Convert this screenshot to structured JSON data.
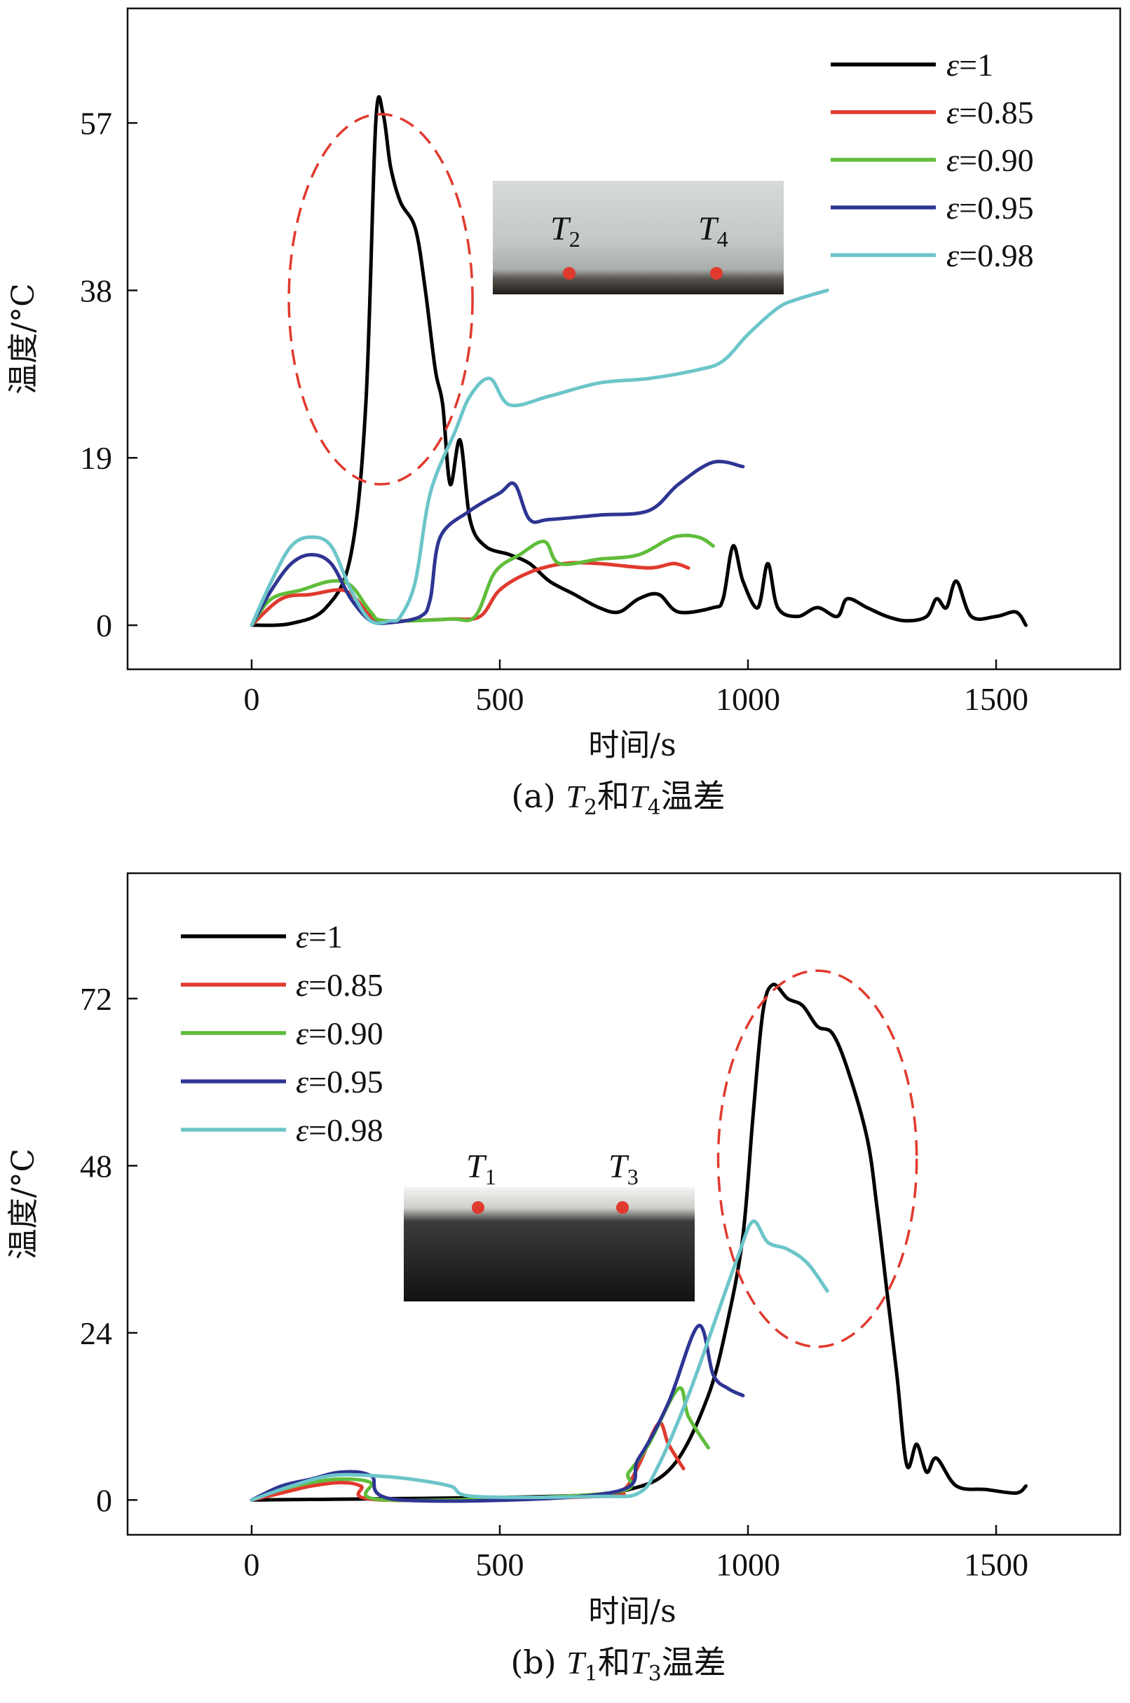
{
  "colors": {
    "eps_1": "#000000",
    "eps_0_85": "#e03a2e",
    "eps_0_90": "#5fbd3a",
    "eps_0_95": "#2e3592",
    "eps_0_98": "#6cc5c9",
    "highlight": "#e03a2e"
  },
  "chart_data": [
    {
      "id": "a",
      "type": "line",
      "caption_prefix": "(a)",
      "caption_text": "和",
      "caption_suffix": "温差",
      "caption_var1": "T",
      "caption_sub1": "2",
      "caption_var2": "T",
      "caption_sub2": "4",
      "xlabel": "时间/s",
      "ylabel": "温度/°C",
      "xlim": [
        -250,
        1750
      ],
      "ylim": [
        -5,
        70
      ],
      "xticks": [
        0,
        500,
        1000,
        1500
      ],
      "yticks": [
        0,
        19,
        38,
        57
      ],
      "legend_position": "top-right",
      "highlight_ellipse": {
        "cx": 260,
        "cy": 37,
        "rx": 185,
        "ry": 21
      },
      "inset": {
        "type": "photo-light",
        "label1": "T",
        "sub1": "2",
        "label2": "T",
        "sub2": "4"
      },
      "series": [
        {
          "name": "ε=1",
          "color_key": "eps_1",
          "points": [
            [
              0,
              0
            ],
            [
              80,
              0.2
            ],
            [
              150,
              2
            ],
            [
              200,
              8
            ],
            [
              230,
              25
            ],
            [
              250,
              57
            ],
            [
              265,
              58
            ],
            [
              280,
              52
            ],
            [
              300,
              48
            ],
            [
              330,
              45
            ],
            [
              350,
              38
            ],
            [
              370,
              29
            ],
            [
              385,
              25
            ],
            [
              400,
              16
            ],
            [
              420,
              21
            ],
            [
              440,
              12
            ],
            [
              470,
              9
            ],
            [
              520,
              8
            ],
            [
              560,
              7
            ],
            [
              600,
              5
            ],
            [
              650,
              3.5
            ],
            [
              700,
              2
            ],
            [
              740,
              1.5
            ],
            [
              780,
              3
            ],
            [
              820,
              3.5
            ],
            [
              860,
              1.5
            ],
            [
              930,
              2
            ],
            [
              950,
              3
            ],
            [
              970,
              9
            ],
            [
              990,
              5
            ],
            [
              1020,
              2
            ],
            [
              1040,
              7
            ],
            [
              1060,
              2
            ],
            [
              1100,
              1
            ],
            [
              1140,
              2
            ],
            [
              1180,
              1
            ],
            [
              1200,
              3
            ],
            [
              1240,
              2
            ],
            [
              1280,
              1
            ],
            [
              1320,
              0.5
            ],
            [
              1360,
              1
            ],
            [
              1380,
              3
            ],
            [
              1400,
              2
            ],
            [
              1420,
              5
            ],
            [
              1450,
              1
            ],
            [
              1500,
              1
            ],
            [
              1540,
              1.5
            ],
            [
              1560,
              0
            ]
          ]
        },
        {
          "name": "ε=0.85",
          "color_key": "eps_0_85",
          "points": [
            [
              0,
              0
            ],
            [
              60,
              3
            ],
            [
              120,
              3.5
            ],
            [
              180,
              4
            ],
            [
              210,
              3
            ],
            [
              240,
              1
            ],
            [
              270,
              0.5
            ],
            [
              400,
              0.7
            ],
            [
              460,
              1
            ],
            [
              500,
              4
            ],
            [
              560,
              6
            ],
            [
              630,
              7
            ],
            [
              700,
              7
            ],
            [
              800,
              6.5
            ],
            [
              850,
              7
            ],
            [
              880,
              6.5
            ]
          ]
        },
        {
          "name": "ε=0.90",
          "color_key": "eps_0_90",
          "points": [
            [
              0,
              0
            ],
            [
              40,
              3
            ],
            [
              100,
              4
            ],
            [
              160,
              5
            ],
            [
              200,
              4.5
            ],
            [
              240,
              1.5
            ],
            [
              270,
              0.5
            ],
            [
              400,
              0.7
            ],
            [
              450,
              1
            ],
            [
              490,
              6
            ],
            [
              540,
              8
            ],
            [
              590,
              9.5
            ],
            [
              620,
              7
            ],
            [
              700,
              7.5
            ],
            [
              780,
              8
            ],
            [
              850,
              10
            ],
            [
              900,
              10
            ],
            [
              930,
              9
            ]
          ]
        },
        {
          "name": "ε=0.95",
          "color_key": "eps_0_95",
          "points": [
            [
              0,
              0
            ],
            [
              40,
              4
            ],
            [
              80,
              7
            ],
            [
              120,
              8
            ],
            [
              160,
              7
            ],
            [
              200,
              3
            ],
            [
              240,
              0.5
            ],
            [
              280,
              0.3
            ],
            [
              340,
              1
            ],
            [
              360,
              3
            ],
            [
              380,
              10
            ],
            [
              440,
              13
            ],
            [
              500,
              15
            ],
            [
              530,
              16
            ],
            [
              560,
              12
            ],
            [
              600,
              12
            ],
            [
              700,
              12.5
            ],
            [
              800,
              13
            ],
            [
              860,
              16
            ],
            [
              930,
              18.5
            ],
            [
              990,
              18
            ]
          ]
        },
        {
          "name": "ε=0.98",
          "color_key": "eps_0_98",
          "points": [
            [
              0,
              0
            ],
            [
              40,
              5
            ],
            [
              80,
              9
            ],
            [
              120,
              10
            ],
            [
              160,
              9
            ],
            [
              200,
              4
            ],
            [
              240,
              0.5
            ],
            [
              280,
              0.5
            ],
            [
              300,
              1
            ],
            [
              330,
              5
            ],
            [
              360,
              15
            ],
            [
              410,
              22
            ],
            [
              440,
              26
            ],
            [
              480,
              28
            ],
            [
              520,
              25
            ],
            [
              600,
              26
            ],
            [
              700,
              27.5
            ],
            [
              800,
              28
            ],
            [
              900,
              29
            ],
            [
              950,
              30
            ],
            [
              1000,
              33
            ],
            [
              1060,
              36
            ],
            [
              1100,
              37
            ],
            [
              1160,
              38
            ]
          ]
        }
      ]
    },
    {
      "id": "b",
      "type": "line",
      "caption_prefix": "(b)",
      "caption_text": "和",
      "caption_suffix": "温差",
      "caption_var1": "T",
      "caption_sub1": "1",
      "caption_var2": "T",
      "caption_sub2": "3",
      "xlabel": "时间/s",
      "ylabel": "温度/°C",
      "xlim": [
        -250,
        1750
      ],
      "ylim": [
        -5,
        90
      ],
      "xticks": [
        0,
        500,
        1000,
        1500
      ],
      "yticks": [
        0,
        24,
        48,
        72
      ],
      "legend_position": "top-left",
      "highlight_ellipse": {
        "cx": 1140,
        "cy": 49,
        "rx": 200,
        "ry": 27
      },
      "inset": {
        "type": "photo-dark",
        "label1": "T",
        "sub1": "1",
        "label2": "T",
        "sub2": "3"
      },
      "series": [
        {
          "name": "ε=1",
          "color_key": "eps_1",
          "points": [
            [
              0,
              0
            ],
            [
              600,
              0.5
            ],
            [
              760,
              1.5
            ],
            [
              850,
              5
            ],
            [
              920,
              15
            ],
            [
              960,
              26
            ],
            [
              990,
              38
            ],
            [
              1010,
              55
            ],
            [
              1030,
              70
            ],
            [
              1050,
              74
            ],
            [
              1080,
              72
            ],
            [
              1110,
              71
            ],
            [
              1140,
              68
            ],
            [
              1170,
              67
            ],
            [
              1200,
              62
            ],
            [
              1240,
              52
            ],
            [
              1260,
              42
            ],
            [
              1280,
              30
            ],
            [
              1300,
              18
            ],
            [
              1320,
              5
            ],
            [
              1340,
              8
            ],
            [
              1360,
              4
            ],
            [
              1380,
              6
            ],
            [
              1420,
              2
            ],
            [
              1480,
              1.5
            ],
            [
              1540,
              1
            ],
            [
              1560,
              2
            ]
          ]
        },
        {
          "name": "ε=0.85",
          "color_key": "eps_0_85",
          "points": [
            [
              0,
              0
            ],
            [
              60,
              1
            ],
            [
              120,
              2
            ],
            [
              180,
              2.5
            ],
            [
              220,
              2
            ],
            [
              260,
              0
            ],
            [
              700,
              0.5
            ],
            [
              750,
              1.5
            ],
            [
              780,
              5
            ],
            [
              820,
              11
            ],
            [
              840,
              8
            ],
            [
              870,
              4.5
            ]
          ]
        },
        {
          "name": "ε=0.90",
          "color_key": "eps_0_90",
          "points": [
            [
              0,
              0
            ],
            [
              60,
              1.5
            ],
            [
              120,
              2.5
            ],
            [
              180,
              3
            ],
            [
              240,
              2.5
            ],
            [
              270,
              0
            ],
            [
              720,
              1
            ],
            [
              760,
              4
            ],
            [
              800,
              8
            ],
            [
              860,
              16
            ],
            [
              880,
              12
            ],
            [
              920,
              7.5
            ]
          ]
        },
        {
          "name": "ε=0.95",
          "color_key": "eps_0_95",
          "points": [
            [
              0,
              0
            ],
            [
              60,
              2
            ],
            [
              120,
              3
            ],
            [
              180,
              4
            ],
            [
              240,
              3.5
            ],
            [
              300,
              0
            ],
            [
              720,
              1
            ],
            [
              780,
              6
            ],
            [
              840,
              14
            ],
            [
              900,
              25
            ],
            [
              930,
              18
            ],
            [
              960,
              16
            ],
            [
              990,
              15
            ]
          ]
        },
        {
          "name": "ε=0.98",
          "color_key": "eps_0_98",
          "points": [
            [
              0,
              0
            ],
            [
              80,
              2
            ],
            [
              160,
              3.5
            ],
            [
              240,
              3.5
            ],
            [
              320,
              3
            ],
            [
              400,
              2
            ],
            [
              450,
              0.5
            ],
            [
              700,
              0.5
            ],
            [
              780,
              1
            ],
            [
              820,
              5
            ],
            [
              880,
              15
            ],
            [
              940,
              27
            ],
            [
              980,
              35
            ],
            [
              1010,
              40
            ],
            [
              1040,
              37
            ],
            [
              1080,
              36
            ],
            [
              1120,
              34
            ],
            [
              1160,
              30
            ]
          ]
        }
      ]
    }
  ]
}
